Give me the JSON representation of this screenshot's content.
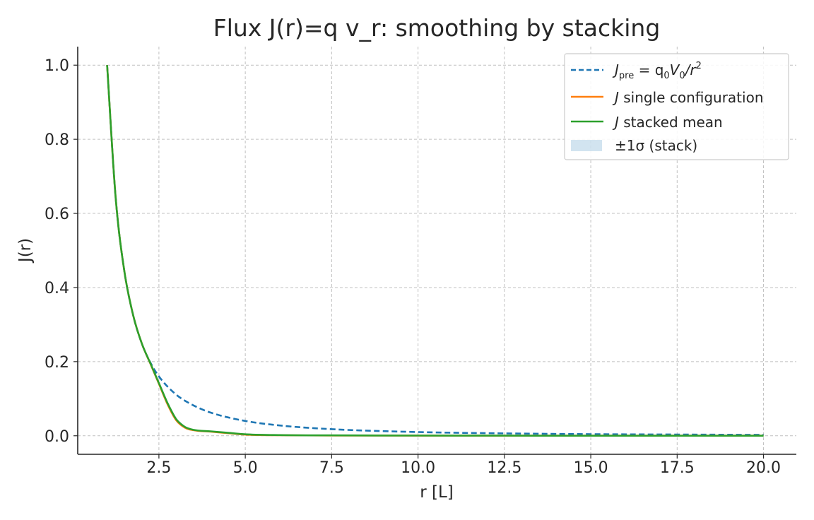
{
  "chart_data": {
    "type": "line",
    "title": "Flux J(r)=q v_r: smoothing by stacking",
    "xlabel": "r [L]",
    "ylabel": "J(r)",
    "xlim": [
      0.15,
      20.95
    ],
    "ylim": [
      -0.05,
      1.05
    ],
    "xticks": [
      2.5,
      5.0,
      7.5,
      10.0,
      12.5,
      15.0,
      17.5,
      20.0
    ],
    "xtick_labels": [
      "2.5",
      "5.0",
      "7.5",
      "10.0",
      "12.5",
      "15.0",
      "17.5",
      "20.0"
    ],
    "yticks": [
      0.0,
      0.2,
      0.4,
      0.6,
      0.8,
      1.0
    ],
    "ytick_labels": [
      "0.0",
      "0.2",
      "0.4",
      "0.6",
      "0.8",
      "1.0"
    ],
    "grid": true,
    "legend_position": "top-right",
    "series": [
      {
        "id": "pre",
        "name": "J_pre = q0 V0 / r^2",
        "style": "dashed",
        "color": "#1f77b4",
        "x": [
          1.0,
          1.25,
          1.5,
          1.75,
          2.0,
          2.25,
          2.5,
          3.0,
          3.5,
          4.0,
          5.0,
          6.0,
          7.5,
          10.0,
          12.5,
          15.0,
          17.5,
          20.0
        ],
        "y": [
          1.0,
          0.64,
          0.444,
          0.327,
          0.25,
          0.198,
          0.16,
          0.111,
          0.082,
          0.0625,
          0.04,
          0.0278,
          0.0178,
          0.01,
          0.0064,
          0.0044,
          0.0033,
          0.0025
        ]
      },
      {
        "id": "single",
        "name": "J single configuration",
        "style": "solid",
        "color": "#ff7f0e",
        "x": [
          1.0,
          1.25,
          1.5,
          1.75,
          2.0,
          2.25,
          2.5,
          2.75,
          3.0,
          3.25,
          3.5,
          4.0,
          4.5,
          5.0,
          6.0,
          7.5,
          10.0,
          15.0,
          20.0
        ],
        "y": [
          1.0,
          0.64,
          0.444,
          0.327,
          0.25,
          0.195,
          0.14,
          0.085,
          0.042,
          0.022,
          0.015,
          0.011,
          0.007,
          0.003,
          0.0015,
          0.0008,
          0.0004,
          0.0002,
          0.0001
        ]
      },
      {
        "id": "stacked",
        "name": "J stacked mean",
        "style": "solid",
        "color": "#2ca02c",
        "x": [
          1.0,
          1.25,
          1.5,
          1.75,
          2.0,
          2.25,
          2.5,
          2.75,
          3.0,
          3.25,
          3.5,
          4.0,
          4.5,
          5.0,
          6.0,
          7.5,
          10.0,
          15.0,
          20.0
        ],
        "y": [
          1.0,
          0.64,
          0.444,
          0.327,
          0.25,
          0.196,
          0.142,
          0.088,
          0.045,
          0.024,
          0.016,
          0.012,
          0.008,
          0.004,
          0.0018,
          0.001,
          0.0005,
          0.0002,
          0.0001
        ]
      }
    ],
    "band": {
      "name": "±1σ (stack)",
      "color": "#1f77b4",
      "opacity": 0.2,
      "sigma": [
        0.0,
        0.0,
        0.0,
        0.0,
        0.0,
        0.002,
        0.004,
        0.004,
        0.003,
        0.002,
        0.001,
        0.001,
        0.0008,
        0.0005,
        0.0003,
        0.0002,
        0.0001,
        0.0001,
        0.0001
      ]
    },
    "legend": [
      {
        "key": "pre",
        "base": "J",
        "sub": "pre",
        "mid": " = q",
        "sub2": "0",
        "mid2": "V",
        "sub3": "0",
        "tail": "/r",
        "sup": "2"
      },
      {
        "key": "single",
        "italic": "J",
        "text": " single configuration"
      },
      {
        "key": "stacked",
        "italic": "J",
        "text": " stacked mean"
      },
      {
        "key": "band",
        "text": "±1σ (stack)"
      }
    ]
  }
}
